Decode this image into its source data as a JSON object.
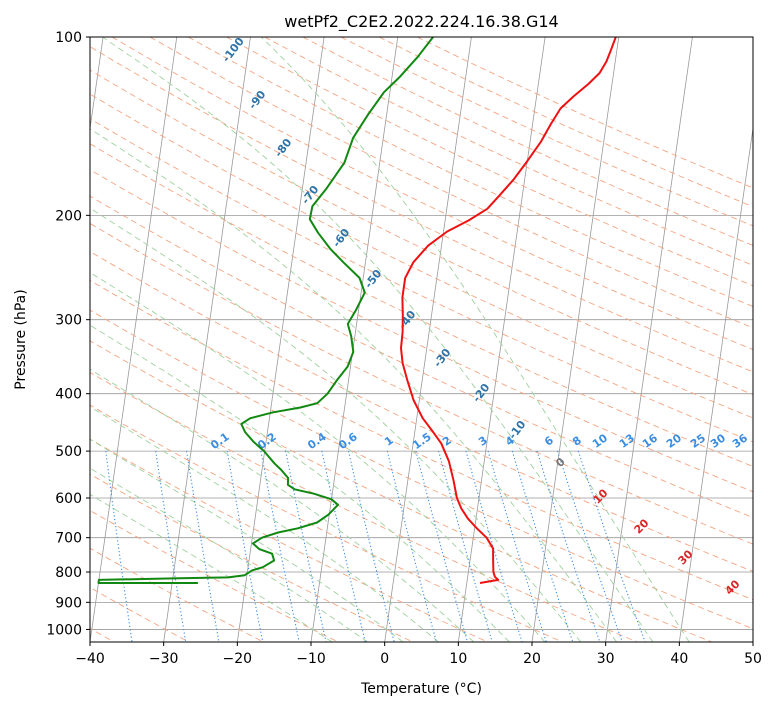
{
  "chart_data": {
    "type": "line",
    "title": "wetPf2_C2E2.2022.224.16.38.G14",
    "xlabel": "Temperature (°C)",
    "ylabel": "Pressure (hPa)",
    "xlim": [
      -40,
      50
    ],
    "ylim": [
      1050,
      100
    ],
    "y_scale": "log",
    "grid": true,
    "x_ticks": [
      -40,
      -30,
      -20,
      -10,
      0,
      10,
      20,
      30,
      40,
      50
    ],
    "y_ticks": [
      100,
      200,
      300,
      400,
      500,
      600,
      700,
      800,
      900,
      1000
    ],
    "colors": {
      "temperature": "#ee1111",
      "dewpoint": "#118811",
      "isotherm": "#999999",
      "dry_adiabat": "#f4a582",
      "moist_adiabat": "#9fd19f",
      "mixing_ratio": "#3a8de0",
      "wet_bulb_label": "#2f74a8",
      "height_label": "#d62728"
    },
    "series": [
      {
        "points": [
          [
            11.8,
            835
          ],
          [
            14.2,
            825
          ],
          [
            13.7,
            815
          ],
          [
            13.4,
            800
          ],
          [
            13.1,
            760
          ],
          [
            12.9,
            730
          ],
          [
            11.8,
            700
          ],
          [
            10.3,
            675
          ],
          [
            8.9,
            650
          ],
          [
            7.8,
            625
          ],
          [
            7.0,
            600
          ],
          [
            6.2,
            560
          ],
          [
            5.2,
            520
          ],
          [
            3.8,
            485
          ],
          [
            2.2,
            460
          ],
          [
            0.8,
            440
          ],
          [
            -0.8,
            410
          ],
          [
            -2.0,
            380
          ],
          [
            -3.0,
            355
          ],
          [
            -3.5,
            335
          ],
          [
            -3.6,
            315
          ],
          [
            -3.9,
            295
          ],
          [
            -4.3,
            275
          ],
          [
            -4.3,
            255
          ],
          [
            -3.5,
            240
          ],
          [
            -1.8,
            225
          ],
          [
            0.5,
            213
          ],
          [
            3.2,
            204
          ],
          [
            5.5,
            195
          ],
          [
            6.9,
            185
          ],
          [
            8.5,
            174
          ],
          [
            10.0,
            162
          ],
          [
            11.5,
            150
          ],
          [
            12.5,
            140
          ],
          [
            13.5,
            132
          ],
          [
            15.0,
            126
          ],
          [
            16.8,
            120
          ],
          [
            18.1,
            115
          ],
          [
            18.8,
            110
          ],
          [
            19.2,
            105
          ],
          [
            19.6,
            100
          ]
        ]
      },
      {
        "points": [
          [
            -26.5,
            835
          ],
          [
            -40.0,
            835
          ],
          [
            -40.0,
            825
          ],
          [
            -30.0,
            820
          ],
          [
            -22.5,
            817
          ],
          [
            -20.3,
            810
          ],
          [
            -19.4,
            795
          ],
          [
            -18.0,
            785
          ],
          [
            -16.6,
            765
          ],
          [
            -17.0,
            745
          ],
          [
            -18.8,
            732
          ],
          [
            -19.8,
            716
          ],
          [
            -18.7,
            700
          ],
          [
            -16.6,
            686
          ],
          [
            -14.0,
            675
          ],
          [
            -11.5,
            660
          ],
          [
            -10.1,
            640
          ],
          [
            -9.0,
            616
          ],
          [
            -10.0,
            603
          ],
          [
            -12.5,
            590
          ],
          [
            -15.2,
            580
          ],
          [
            -16.2,
            570
          ],
          [
            -16.3,
            555
          ],
          [
            -17.4,
            538
          ],
          [
            -18.4,
            525
          ],
          [
            -20.1,
            500
          ],
          [
            -21.7,
            482
          ],
          [
            -23.0,
            465
          ],
          [
            -23.7,
            450
          ],
          [
            -22.6,
            440
          ],
          [
            -19.6,
            430
          ],
          [
            -16.0,
            422
          ],
          [
            -13.8,
            415
          ],
          [
            -12.6,
            400
          ],
          [
            -11.6,
            380
          ],
          [
            -10.4,
            360
          ],
          [
            -9.9,
            340
          ],
          [
            -10.5,
            320
          ],
          [
            -11.2,
            305
          ],
          [
            -10.4,
            290
          ],
          [
            -9.5,
            270
          ],
          [
            -10.5,
            255
          ],
          [
            -13.0,
            240
          ],
          [
            -15.0,
            228
          ],
          [
            -17.0,
            214
          ],
          [
            -18.4,
            203
          ],
          [
            -18.3,
            193
          ],
          [
            -16.7,
            180
          ],
          [
            -14.8,
            163
          ],
          [
            -14.1,
            148
          ],
          [
            -12.5,
            135
          ],
          [
            -10.8,
            124
          ],
          [
            -9.0,
            117
          ],
          [
            -6.9,
            108
          ],
          [
            -5.2,
            100
          ]
        ]
      }
    ],
    "wet_bulb_labels": [
      "-100",
      "-90",
      "-80",
      "-70",
      "-60",
      "-50",
      "-40",
      "-30",
      "-20",
      "-10"
    ],
    "mixing_ratio_labels": [
      "0.1",
      "0.2",
      "0.4",
      "0.6",
      "1",
      "1.5",
      "2",
      "3",
      "4",
      "6",
      "8",
      "10",
      "13",
      "16",
      "20",
      "25",
      "30",
      "36"
    ],
    "height_labels": [
      "0",
      "10",
      "20",
      "30",
      "40"
    ]
  }
}
